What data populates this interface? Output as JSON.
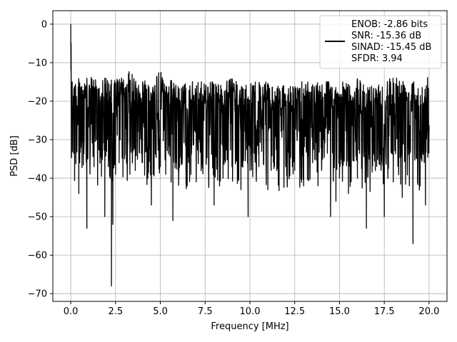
{
  "chart_data": {
    "type": "line",
    "xlabel": "Frequency [MHz]",
    "ylabel": "PSD [dB]",
    "xlim": [
      -1.0,
      21.0
    ],
    "ylim": [
      -72.0,
      3.5
    ],
    "xticks": [
      0.0,
      2.5,
      5.0,
      7.5,
      10.0,
      12.5,
      15.0,
      17.5,
      20.0
    ],
    "xtick_labels": [
      "0.0",
      "2.5",
      "5.0",
      "7.5",
      "10.0",
      "12.5",
      "15.0",
      "17.5",
      "20.0"
    ],
    "yticks": [
      0,
      -10,
      -20,
      -30,
      -40,
      -50,
      -60,
      -70
    ],
    "ytick_labels": [
      "0",
      "−10",
      "−20",
      "−30",
      "−40",
      "−50",
      "−60",
      "−70"
    ],
    "grid": true,
    "legend_position": "top-right",
    "line_color": "#000000",
    "legend": {
      "lines": [
        "ENOB: -2.86 bits",
        "SNR: -15.36 dB",
        "SINAD: -15.45 dB",
        "SFDR: 3.94"
      ]
    },
    "series": [
      {
        "x": [
          0.0,
          0.02,
          0.05,
          0.08,
          0.1,
          0.15,
          0.2,
          0.3,
          0.45,
          0.5,
          0.6,
          0.75,
          0.9,
          0.95,
          1.1,
          1.3,
          1.5,
          1.75,
          1.9,
          2.0,
          2.1,
          2.2,
          2.27,
          2.35,
          2.5,
          2.7,
          3.0,
          3.3,
          3.6,
          4.0,
          4.3,
          4.5,
          4.6,
          5.0,
          5.3,
          5.6,
          5.7,
          6.0,
          6.5,
          7.0,
          7.3,
          7.7,
          8.0,
          8.3,
          8.5,
          9.0,
          9.5,
          9.9,
          10.0,
          10.5,
          11.0,
          11.5,
          12.0,
          12.5,
          13.0,
          13.5,
          13.8,
          14.0,
          14.5,
          14.8,
          15.0,
          15.5,
          16.0,
          16.5,
          17.0,
          17.5,
          17.7,
          18.0,
          18.5,
          18.9,
          19.1,
          19.5,
          19.8,
          20.0
        ],
        "y": [
          0.0,
          -10.0,
          -18.0,
          -15.0,
          -22.0,
          -20.0,
          -25.0,
          -28.0,
          -44.0,
          -36.0,
          -32.0,
          -30.0,
          -53.0,
          -35.0,
          -30.0,
          -37.0,
          -39.0,
          -35.0,
          -50.0,
          -33.0,
          -37.0,
          -40.0,
          -68.0,
          -52.0,
          -39.0,
          -36.0,
          -35.0,
          -39.0,
          -38.0,
          -36.0,
          -40.0,
          -47.0,
          -39.0,
          -37.0,
          -39.0,
          -41.0,
          -51.0,
          -38.0,
          -42.0,
          -38.0,
          -36.0,
          -42.0,
          -47.0,
          -38.0,
          -40.0,
          -37.0,
          -43.0,
          -50.0,
          -38.0,
          -37.0,
          -43.0,
          -38.0,
          -37.0,
          -38.0,
          -42.0,
          -36.0,
          -42.0,
          -38.0,
          -50.0,
          -46.0,
          -40.0,
          -44.0,
          -40.0,
          -53.0,
          -38.0,
          -50.0,
          -40.0,
          -41.0,
          -45.0,
          -42.0,
          -57.0,
          -42.0,
          -47.0,
          -28.0
        ],
        "envelope_top": [
          -4.0,
          -12.0,
          -13.0,
          -14.0,
          -13.5,
          -14.0,
          -14.0,
          -13.5,
          -14.0,
          -14.0,
          -13.0,
          -14.0,
          -14.0,
          -13.5,
          -14.0,
          -13.0,
          -14.5,
          -14.0,
          -13.5,
          -14.0,
          -14.0,
          -15.0,
          -14.5,
          -15.0,
          -14.0,
          -13.5,
          -14.0,
          -12.0,
          -14.0,
          -14.0,
          -14.0,
          -15.0,
          -14.0,
          -12.0,
          -14.5,
          -14.0,
          -15.0,
          -16.0,
          -15.0,
          -14.5,
          -15.0,
          -15.0,
          -13.0,
          -16.0,
          -15.0,
          -14.0,
          -15.5,
          -16.0,
          -14.0,
          -15.0,
          -15.0,
          -16.0,
          -16.0,
          -16.0,
          -14.0,
          -15.0,
          -14.0,
          -15.0,
          -14.0,
          -16.0,
          -15.0,
          -15.0,
          -14.0,
          -16.0,
          -15.0,
          -15.0,
          -14.0,
          -13.0,
          -14.0,
          -15.0,
          -13.0,
          -16.0,
          -14.0,
          -12.5
        ]
      }
    ]
  }
}
